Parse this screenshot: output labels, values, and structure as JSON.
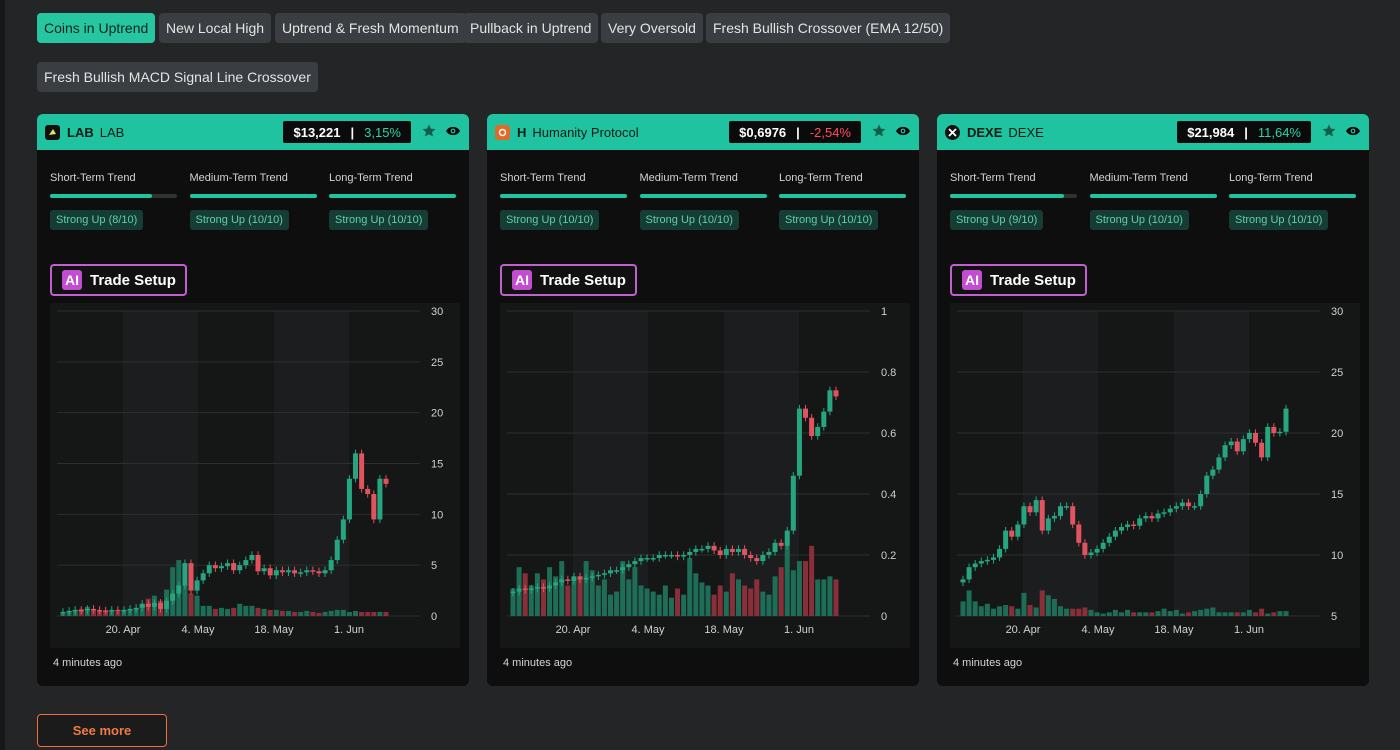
{
  "filters": [
    {
      "label": "Coins in Uptrend",
      "active": true
    },
    {
      "label": "New Local High",
      "active": false
    },
    {
      "label": "Uptrend & Fresh Momentum",
      "active": false
    },
    {
      "label": "Pullback in Uptrend",
      "active": false
    },
    {
      "label": "Very Oversold",
      "active": false
    },
    {
      "label": "Fresh Bullish Crossover (EMA 12/50)",
      "active": false
    },
    {
      "label": "Fresh Bullish MACD Signal Line Crossover",
      "active": false
    }
  ],
  "trend_labels": {
    "short": "Short-Term Trend",
    "medium": "Medium-Term Trend",
    "long": "Long-Term Trend"
  },
  "ai_label": "AI",
  "ai_button": "Trade Setup",
  "see_more": "See more",
  "colors": {
    "accent": "#1fc39f",
    "up": "#26a680",
    "down": "#e0535f",
    "ai": "#c24dd0",
    "cta": "#f06d3c"
  },
  "cards": [
    {
      "symbol": "LAB",
      "name": "LAB",
      "icon": "lab-logo-icon",
      "price": "$13,221",
      "change": "3,15%",
      "change_dir": "up",
      "trends": [
        {
          "badge": "Strong Up (8/10)",
          "score": 0.8
        },
        {
          "badge": "Strong Up (10/10)",
          "score": 1.0
        },
        {
          "badge": "Strong Up (10/10)",
          "score": 1.0
        }
      ],
      "updated": "4 minutes ago"
    },
    {
      "symbol": "H",
      "name": "Humanity Protocol",
      "icon": "humanity-logo-icon",
      "price": "$0,6976",
      "change": "-2,54%",
      "change_dir": "down",
      "trends": [
        {
          "badge": "Strong Up (10/10)",
          "score": 1.0
        },
        {
          "badge": "Strong Up (10/10)",
          "score": 1.0
        },
        {
          "badge": "Strong Up (10/10)",
          "score": 1.0
        }
      ],
      "updated": "4 minutes ago"
    },
    {
      "symbol": "DEXE",
      "name": "DEXE",
      "icon": "dexe-logo-icon",
      "price": "$21,984",
      "change": "11,64%",
      "change_dir": "up",
      "trends": [
        {
          "badge": "Strong Up (9/10)",
          "score": 0.9
        },
        {
          "badge": "Strong Up (10/10)",
          "score": 1.0
        },
        {
          "badge": "Strong Up (10/10)",
          "score": 1.0
        }
      ],
      "updated": "4 minutes ago"
    }
  ],
  "chart_data": [
    {
      "type": "candlestick",
      "x_ticks": [
        "20. Apr",
        "4. May",
        "18. May",
        "1. Jun"
      ],
      "y_ticks": [
        "0",
        "5",
        "10",
        "15",
        "20",
        "25",
        "30"
      ],
      "ylim": [
        0,
        30
      ],
      "closes": [
        0.4,
        0.5,
        0.6,
        0.55,
        0.7,
        0.6,
        0.55,
        0.5,
        0.6,
        0.55,
        0.6,
        0.7,
        0.8,
        1.2,
        0.9,
        1.3,
        0.7,
        1.5,
        2.2,
        3.0,
        5.2,
        2.5,
        3.5,
        4.2,
        5.0,
        4.7,
        4.9,
        5.2,
        4.5,
        5.0,
        5.5,
        6.0,
        4.4,
        4.7,
        4.0,
        4.5,
        4.3,
        4.5,
        4.2,
        4.3,
        4.5,
        4.4,
        4.2,
        4.5,
        5.5,
        7.5,
        9.5,
        13.5,
        16.0,
        12.5,
        12.0,
        9.5,
        13.5,
        13.0
      ],
      "volumes": [
        0.4,
        0.5,
        0.6,
        0.7,
        0.9,
        0.6,
        0.5,
        0.5,
        0.5,
        0.4,
        0.6,
        0.6,
        0.7,
        1.2,
        1.7,
        2.0,
        1.5,
        2.6,
        4.8,
        5.5,
        3.2,
        2.2,
        2.0,
        1.0,
        1.0,
        0.7,
        0.8,
        0.7,
        0.8,
        1.2,
        1.0,
        1.0,
        0.8,
        0.7,
        0.6,
        0.6,
        0.5,
        0.5,
        0.4,
        0.4,
        0.5,
        0.4,
        0.3,
        0.4,
        0.5,
        0.6,
        0.6,
        0.4,
        0.5,
        0.4,
        0.4,
        0.4,
        0.4,
        0.4
      ]
    },
    {
      "type": "candlestick",
      "x_ticks": [
        "20. Apr",
        "4. May",
        "18. May",
        "1. Jun"
      ],
      "y_ticks": [
        "0",
        "0.2",
        "0.4",
        "0.6",
        "0.8",
        "1"
      ],
      "ylim": [
        0,
        1
      ],
      "closes": [
        0.08,
        0.09,
        0.085,
        0.09,
        0.095,
        0.09,
        0.1,
        0.11,
        0.12,
        0.115,
        0.13,
        0.12,
        0.125,
        0.13,
        0.135,
        0.14,
        0.15,
        0.15,
        0.16,
        0.17,
        0.18,
        0.19,
        0.19,
        0.19,
        0.2,
        0.2,
        0.2,
        0.195,
        0.2,
        0.21,
        0.22,
        0.22,
        0.23,
        0.215,
        0.2,
        0.22,
        0.21,
        0.22,
        0.2,
        0.19,
        0.18,
        0.2,
        0.21,
        0.24,
        0.23,
        0.28,
        0.46,
        0.68,
        0.65,
        0.59,
        0.62,
        0.67,
        0.74,
        0.72
      ],
      "volumes": [
        0.09,
        0.16,
        0.14,
        0.1,
        0.14,
        0.12,
        0.16,
        0.13,
        0.18,
        0.1,
        0.12,
        0.13,
        0.18,
        0.15,
        0.1,
        0.12,
        0.07,
        0.08,
        0.18,
        0.12,
        0.16,
        0.1,
        0.09,
        0.08,
        0.07,
        0.1,
        0.06,
        0.09,
        0.07,
        0.19,
        0.14,
        0.11,
        0.1,
        0.07,
        0.1,
        0.08,
        0.14,
        0.12,
        0.1,
        0.09,
        0.12,
        0.08,
        0.07,
        0.13,
        0.16,
        0.23,
        0.15,
        0.18,
        0.18,
        0.23,
        0.12,
        0.12,
        0.13,
        0.12
      ]
    },
    {
      "type": "candlestick",
      "x_ticks": [
        "20. Apr",
        "4. May",
        "18. May",
        "1. Jun"
      ],
      "y_ticks": [
        "5",
        "10",
        "15",
        "20",
        "25",
        "30"
      ],
      "ylim": [
        5,
        30
      ],
      "closes": [
        8.0,
        9.0,
        9.3,
        9.5,
        9.6,
        9.8,
        10.5,
        12.0,
        11.5,
        12.5,
        14.0,
        13.5,
        14.5,
        12.0,
        13.0,
        13.2,
        14.0,
        14.0,
        12.5,
        11.0,
        10.0,
        10.2,
        10.5,
        11.0,
        11.5,
        12.0,
        12.3,
        12.5,
        12.4,
        13.0,
        13.2,
        13.0,
        13.4,
        13.5,
        13.8,
        14.0,
        14.3,
        14.0,
        14.0,
        15.0,
        16.5,
        17.0,
        18.0,
        19.0,
        19.3,
        18.5,
        19.5,
        20.0,
        19.2,
        18.0,
        20.5,
        20.0,
        20.1,
        22.0
      ],
      "volumes": [
        6.2,
        7.1,
        6.2,
        5.8,
        6.0,
        5.6,
        5.8,
        5.9,
        5.8,
        5.6,
        6.9,
        5.9,
        5.7,
        7.1,
        6.7,
        6.4,
        5.8,
        5.6,
        5.6,
        5.6,
        5.7,
        5.5,
        5.3,
        5.2,
        5.3,
        5.5,
        5.3,
        5.5,
        5.3,
        5.3,
        5.3,
        5.3,
        5.4,
        5.6,
        5.4,
        5.5,
        5.2,
        5.3,
        5.4,
        5.5,
        5.6,
        5.7,
        5.3,
        5.3,
        5.3,
        5.3,
        5.3,
        5.5,
        5.3,
        5.6,
        5.2,
        5.3,
        5.4,
        5.4
      ]
    }
  ]
}
